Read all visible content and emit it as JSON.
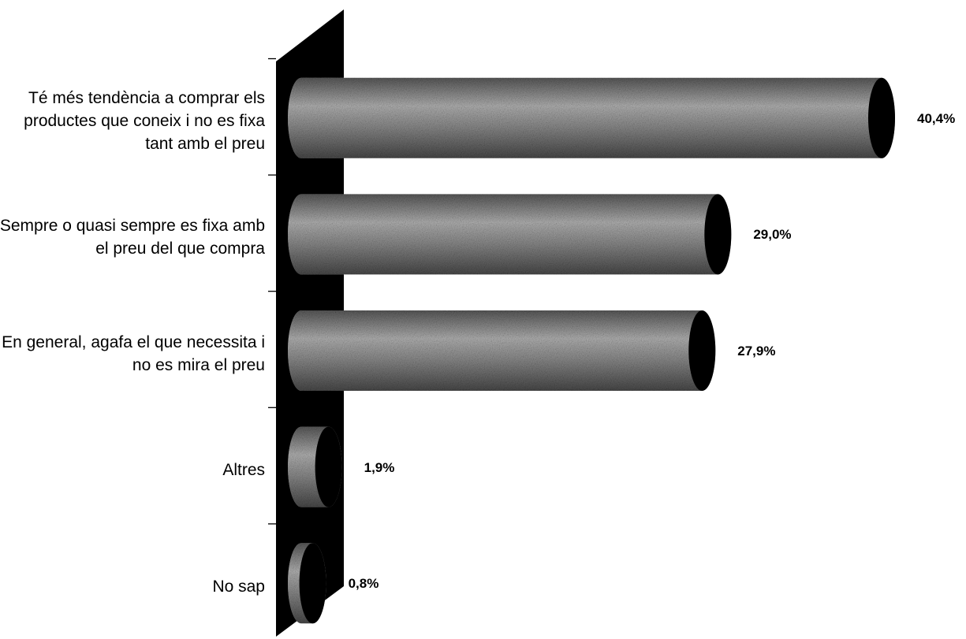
{
  "chart_data": {
    "type": "bar",
    "orientation": "horizontal",
    "style": "3d-cylinder",
    "categories": [
      "Té més tendència a comprar els productes que coneix i no es fixa tant amb el preu",
      "Sempre o quasi sempre es fixa amb el preu del que compra",
      "En general, agafa el que necessita i no es mira el preu",
      "Altres",
      "No sap"
    ],
    "values": [
      40.4,
      29.0,
      27.9,
      1.9,
      0.8
    ],
    "value_labels": [
      "40,4%",
      "29,0%",
      "27,9%",
      "1,9%",
      "0,8%"
    ],
    "xlim": [
      0,
      40.4
    ],
    "grid": false,
    "legend": "none",
    "colors": {
      "bar_fill": "#8c8c8c",
      "bar_light": "#c4c4c4",
      "bar_dark": "#3a3a3a",
      "bar_end": "#000000",
      "wall": "#000000"
    }
  }
}
